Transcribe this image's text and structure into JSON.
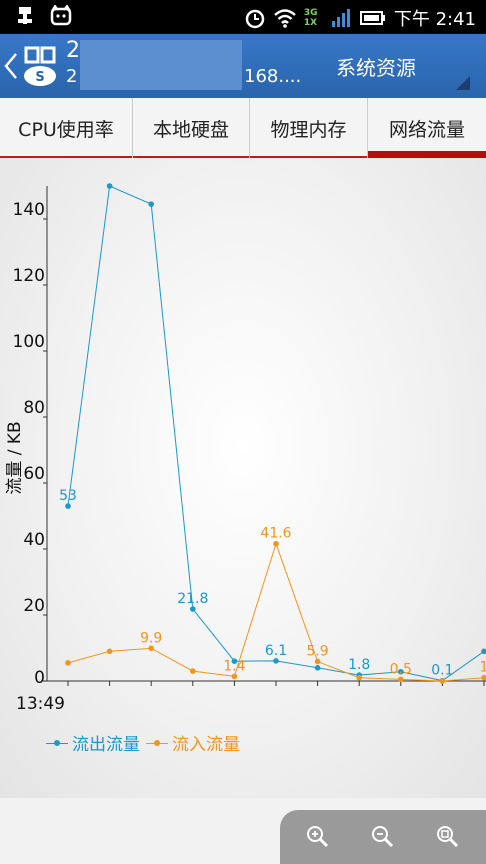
{
  "status_bar": {
    "time": "下午 2:41",
    "network": "3G 1X",
    "icons": [
      "usb-icon",
      "cat-face-icon",
      "alarm-icon",
      "wifi-icon",
      "signal-icon",
      "battery-icon"
    ]
  },
  "app_bar": {
    "server_number": "2",
    "server_address": "2",
    "server_ip_suffix": "168....",
    "title_dropdown": "系统资源"
  },
  "tabs": [
    {
      "label": "CPU使用率",
      "active": false
    },
    {
      "label": "本地硬盘",
      "active": false
    },
    {
      "label": "物理内存",
      "active": false
    },
    {
      "label": "网络流量",
      "active": true
    }
  ],
  "chart_data": {
    "type": "line",
    "ylabel": "流量 / KB",
    "xlabel": "",
    "ylim": [
      0,
      150
    ],
    "yticks": [
      0,
      20,
      40,
      60,
      80,
      100,
      120,
      140
    ],
    "x_start_label": "13:49",
    "grid": false,
    "legend_position": "bottom-left",
    "series": [
      {
        "name": "流出流量",
        "color": "#1b98cc",
        "values": [
          53,
          150,
          144.5,
          21.8,
          6,
          6.1,
          4,
          1.8,
          2.8,
          0.1,
          9
        ],
        "labels": [
          "53",
          "",
          "",
          "21.8",
          "",
          "6.1",
          "",
          "1.8",
          "",
          "0.1",
          ""
        ]
      },
      {
        "name": "流入流量",
        "color": "#f0961b",
        "values": [
          5.5,
          9,
          9.9,
          3,
          1.4,
          41.6,
          5.9,
          1,
          0.5,
          0,
          1
        ],
        "labels": [
          "",
          "",
          "9.9",
          "",
          "1.4",
          "41.6",
          "5.9",
          "",
          "0.5",
          "",
          "1"
        ]
      }
    ]
  },
  "zoom": {
    "icons": [
      "zoom-in-icon",
      "zoom-out-icon",
      "zoom-reset-icon"
    ]
  }
}
